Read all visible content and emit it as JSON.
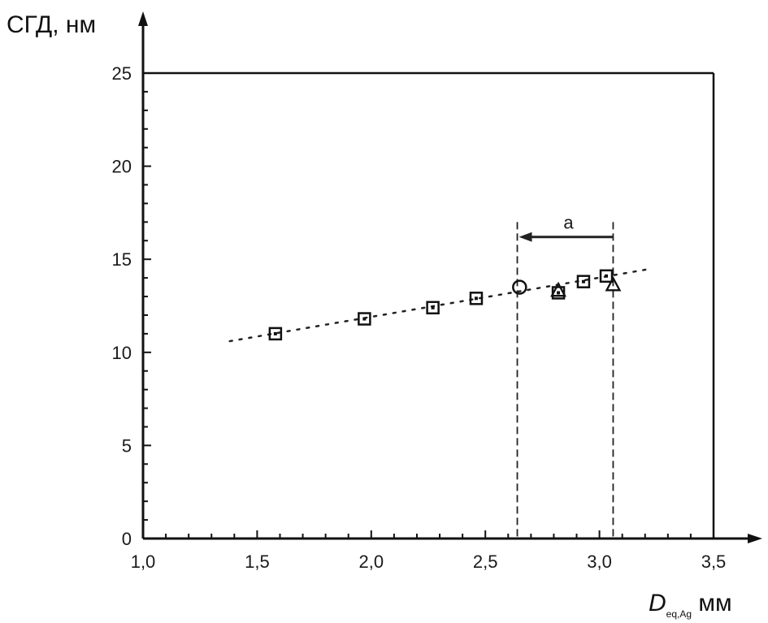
{
  "chart_data": {
    "type": "scatter",
    "ylabel": "СГД, нм",
    "xlabel_main": "D",
    "xlabel_sub": "eq,Ag",
    "xlabel_unit": "мм",
    "xlim": [
      1.0,
      3.5
    ],
    "ylim": [
      0,
      25
    ],
    "grid": false,
    "x_ticks": [
      "1,0",
      "1,5",
      "2,0",
      "2,5",
      "3,0",
      "3,5"
    ],
    "y_ticks": [
      "0",
      "5",
      "10",
      "15",
      "20",
      "25"
    ],
    "series": [
      {
        "marker": "square",
        "points": [
          {
            "x": 1.58,
            "y": 11.0
          },
          {
            "x": 1.97,
            "y": 11.8
          },
          {
            "x": 2.27,
            "y": 12.4
          },
          {
            "x": 2.46,
            "y": 12.9
          },
          {
            "x": 2.82,
            "y": 13.2
          },
          {
            "x": 2.93,
            "y": 13.8
          },
          {
            "x": 3.03,
            "y": 14.1
          }
        ]
      },
      {
        "marker": "circle",
        "points": [
          {
            "x": 2.65,
            "y": 13.5
          }
        ]
      },
      {
        "marker": "triangle",
        "points": [
          {
            "x": 2.82,
            "y": 13.3
          },
          {
            "x": 3.06,
            "y": 13.6
          }
        ]
      }
    ],
    "trend_line": {
      "x1": 1.38,
      "y1": 10.6,
      "x2": 3.23,
      "y2": 14.5
    },
    "annotation": {
      "label": "a",
      "x_start": 3.06,
      "x_end": 2.64,
      "y": 16.2,
      "vertical_lines_top": 17.0
    }
  }
}
